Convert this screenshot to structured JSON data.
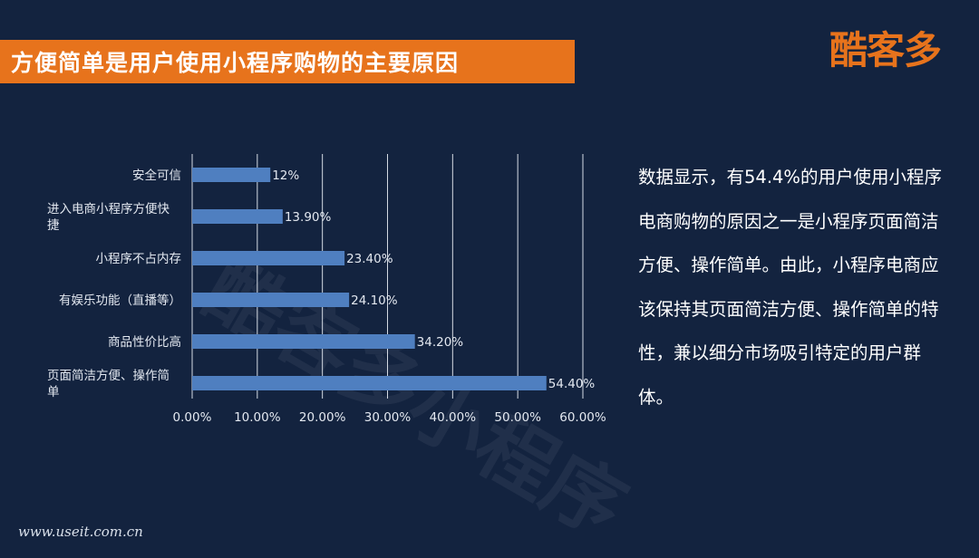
{
  "header": {
    "title": "方便简单是用户使用小程序购物的主要原因"
  },
  "brand": {
    "logo_text": "酷客多",
    "watermark_text": "酷客多小程序"
  },
  "description": "数据显示，有54.4%的用户使用小程序电商购物的原因之一是小程序页面简洁方便、操作简单。由此，小程序电商应该保持其页面简洁方便、操作简单的特性，兼以细分市场吸引特定的用户群体。",
  "footer": {
    "url": "www.useit.com.cn"
  },
  "colors": {
    "background": "#13233f",
    "accent": "#e7731c",
    "bar": "#4f7fc0"
  },
  "chart_data": {
    "type": "bar",
    "orientation": "horizontal",
    "categories": [
      "安全可信",
      "进入电商小程序方便快捷",
      "小程序不占内存",
      "有娱乐功能（直播等）",
      "商品性价比高",
      "页面简洁方便、操作简单"
    ],
    "values": [
      12,
      13.9,
      23.4,
      24.1,
      34.2,
      54.4
    ],
    "data_labels": [
      "12%",
      "13.90%",
      "23.40%",
      "24.10%",
      "34.20%",
      "54.40%"
    ],
    "xlim": [
      0,
      60
    ],
    "x_ticks": [
      "0.00%",
      "10.00%",
      "20.00%",
      "30.00%",
      "40.00%",
      "50.00%",
      "60.00%"
    ],
    "grid": "vertical",
    "title": "",
    "xlabel": "",
    "ylabel": ""
  }
}
